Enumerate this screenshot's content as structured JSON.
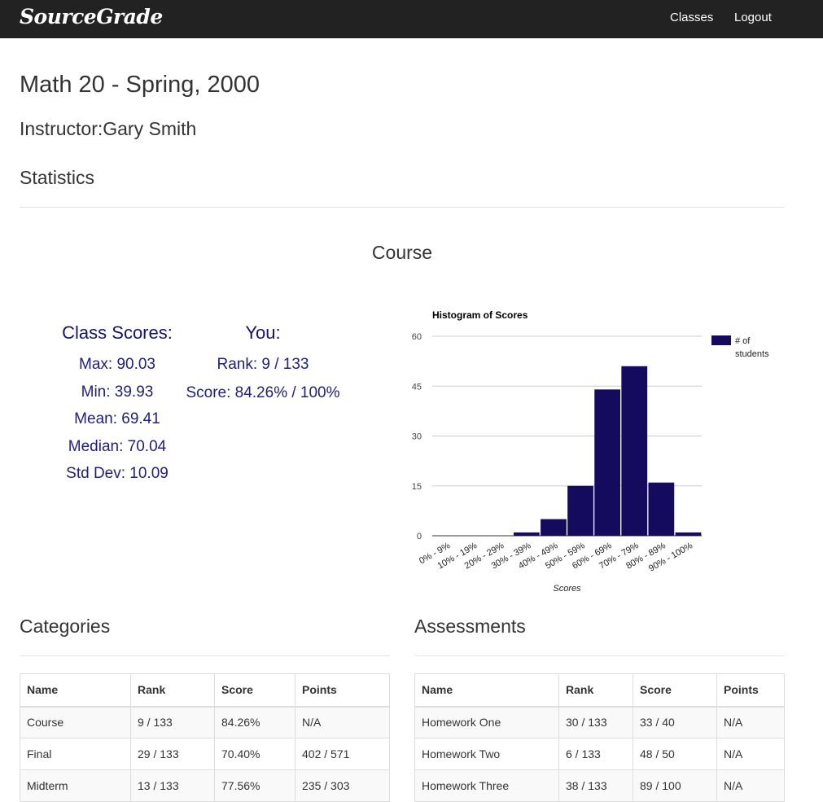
{
  "navbar": {
    "brand": "SourceGrade",
    "links": [
      "Classes",
      "Logout"
    ]
  },
  "page": {
    "title": "Math 20 - Spring, 2000",
    "instructor": "Instructor:Gary Smith",
    "statistics_heading": "Statistics",
    "course_heading": "Course"
  },
  "class_scores": {
    "heading": "Class Scores:",
    "max": "Max: 90.03",
    "min": "Min: 39.93",
    "mean": "Mean: 69.41",
    "median": "Median: 70.04",
    "std_dev": "Std Dev: 10.09"
  },
  "you": {
    "heading": "You:",
    "rank": "Rank: 9 / 133",
    "score": "Score: 84.26% / 100%"
  },
  "colors": {
    "bar": "#140a5e",
    "gridline": "#cccccc",
    "navbar": "#222222"
  },
  "chart_data": {
    "type": "bar",
    "title": "Histogram of Scores",
    "xlabel": "Scores",
    "ylabel": "",
    "categories": [
      "0% - 9%",
      "10% - 19%",
      "20% - 29%",
      "30% - 39%",
      "40% - 49%",
      "50% - 59%",
      "60% - 69%",
      "70% - 79%",
      "80% - 89%",
      "90% - 100%"
    ],
    "series": [
      {
        "name": "# of students",
        "values": [
          0,
          0,
          0,
          1,
          5,
          15,
          44,
          51,
          16,
          1
        ]
      }
    ],
    "ylim": [
      0,
      60
    ],
    "yticks": [
      0,
      15,
      30,
      45,
      60
    ],
    "grid": true,
    "legend": "right"
  },
  "categories": {
    "heading": "Categories",
    "columns": [
      "Name",
      "Rank",
      "Score",
      "Points"
    ],
    "rows": [
      [
        "Course",
        "9 / 133",
        "84.26%",
        "N/A"
      ],
      [
        "Final",
        "29 / 133",
        "70.40%",
        "402 / 571"
      ],
      [
        "Midterm",
        "13 / 133",
        "77.56%",
        "235 / 303"
      ]
    ]
  },
  "assessments": {
    "heading": "Assessments",
    "columns": [
      "Name",
      "Rank",
      "Score",
      "Points"
    ],
    "rows": [
      [
        "Homework One",
        "30 / 133",
        "33 / 40",
        "N/A"
      ],
      [
        "Homework Two",
        "6 / 133",
        "48 / 50",
        "N/A"
      ],
      [
        "Homework Three",
        "38 / 133",
        "89 / 100",
        "N/A"
      ]
    ]
  }
}
